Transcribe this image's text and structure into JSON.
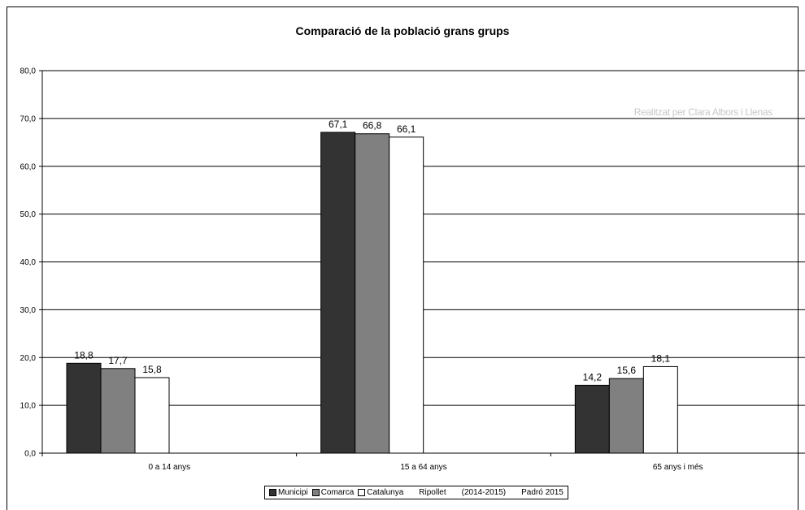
{
  "chart_data": {
    "type": "bar",
    "title": "Comparació de la població grans grups",
    "watermark": "Realitzat per Clara Albors i Llenas",
    "categories": [
      "0 a 14 anys",
      "15 a 64 anys",
      "65 anys i més"
    ],
    "series": [
      {
        "name": "Municipi",
        "color": "#333333",
        "values": [
          18.8,
          67.1,
          14.2
        ]
      },
      {
        "name": "Comarca",
        "color": "#808080",
        "values": [
          17.7,
          66.8,
          15.6
        ]
      },
      {
        "name": "Catalunya",
        "color": "#ffffff",
        "values": [
          15.8,
          66.1,
          18.1
        ]
      }
    ],
    "value_labels": [
      [
        "18,8",
        "67,1",
        "14,2"
      ],
      [
        "17,7",
        "66,8",
        "15,6"
      ],
      [
        "15,8",
        "66,1",
        "18,1"
      ]
    ],
    "ylim": [
      0,
      80
    ],
    "yticks": [
      "0,0",
      "10,0",
      "20,0",
      "30,0",
      "40,0",
      "50,0",
      "60,0",
      "70,0",
      "80,0"
    ],
    "grid": true,
    "legend": {
      "position": "bottom",
      "extra_text": [
        "Ripollet",
        "(2014-2015)",
        "Padró 2015"
      ]
    }
  }
}
